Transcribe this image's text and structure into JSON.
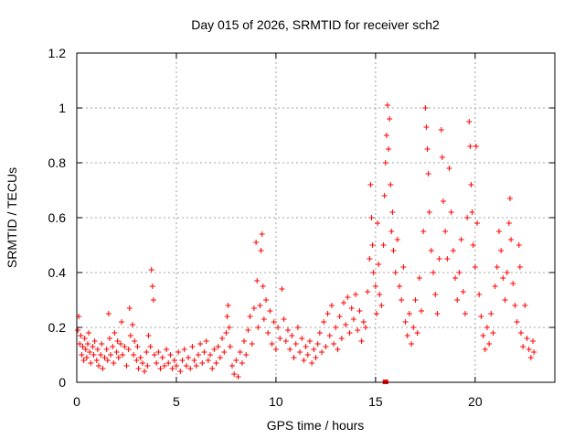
{
  "chart_data": {
    "type": "scatter",
    "title": "Day 015 of 2026, SRMTID for receiver sch2",
    "xlabel": "GPS time / hours",
    "ylabel": "SRMTID / TECUs",
    "xlim": [
      0,
      24
    ],
    "ylim": [
      0,
      1.2
    ],
    "xticks": [
      0,
      5,
      10,
      15,
      20
    ],
    "xtick_labels": [
      "0",
      "5",
      "10",
      "15",
      "20"
    ],
    "yticks": [
      0,
      0.2,
      0.4,
      0.6,
      0.8,
      1.0,
      1.2
    ],
    "ytick_labels": [
      "0",
      "0.2",
      "0.4",
      "0.6",
      "0.8",
      "1",
      "1.2"
    ],
    "grid": true,
    "marker": "plus",
    "color": "#ff0000",
    "series": [
      {
        "name": "SRMTID",
        "points": [
          [
            0.05,
            0.19
          ],
          [
            0.1,
            0.24
          ],
          [
            0.15,
            0.14
          ],
          [
            0.2,
            0.17
          ],
          [
            0.25,
            0.1
          ],
          [
            0.3,
            0.13
          ],
          [
            0.35,
            0.08
          ],
          [
            0.4,
            0.16
          ],
          [
            0.45,
            0.12
          ],
          [
            0.5,
            0.09
          ],
          [
            0.55,
            0.14
          ],
          [
            0.6,
            0.18
          ],
          [
            0.65,
            0.11
          ],
          [
            0.7,
            0.07
          ],
          [
            0.8,
            0.13
          ],
          [
            0.85,
            0.1
          ],
          [
            0.9,
            0.15
          ],
          [
            1.0,
            0.08
          ],
          [
            1.05,
            0.12
          ],
          [
            1.1,
            0.06
          ],
          [
            1.2,
            0.1
          ],
          [
            1.25,
            0.14
          ],
          [
            1.3,
            0.05
          ],
          [
            1.4,
            0.09
          ],
          [
            1.5,
            0.12
          ],
          [
            1.55,
            0.08
          ],
          [
            1.6,
            0.25
          ],
          [
            1.65,
            0.16
          ],
          [
            1.7,
            0.1
          ],
          [
            1.8,
            0.13
          ],
          [
            1.85,
            0.07
          ],
          [
            1.9,
            0.18
          ],
          [
            2.0,
            0.11
          ],
          [
            2.05,
            0.15
          ],
          [
            2.1,
            0.09
          ],
          [
            2.2,
            0.14
          ],
          [
            2.25,
            0.22
          ],
          [
            2.3,
            0.1
          ],
          [
            2.4,
            0.13
          ],
          [
            2.5,
            0.06
          ],
          [
            2.6,
            0.12
          ],
          [
            2.65,
            0.27
          ],
          [
            2.7,
            0.17
          ],
          [
            2.8,
            0.21
          ],
          [
            2.85,
            0.1
          ],
          [
            2.9,
            0.15
          ],
          [
            3.0,
            0.08
          ],
          [
            3.05,
            0.13
          ],
          [
            3.1,
            0.05
          ],
          [
            3.2,
            0.09
          ],
          [
            3.3,
            0.07
          ],
          [
            3.4,
            0.04
          ],
          [
            3.5,
            0.11
          ],
          [
            3.55,
            0.06
          ],
          [
            3.6,
            0.17
          ],
          [
            3.7,
            0.13
          ],
          [
            3.75,
            0.41
          ],
          [
            3.8,
            0.35
          ],
          [
            3.85,
            0.3
          ],
          [
            3.9,
            0.1
          ],
          [
            4.0,
            0.07
          ],
          [
            4.1,
            0.11
          ],
          [
            4.2,
            0.05
          ],
          [
            4.3,
            0.09
          ],
          [
            4.4,
            0.06
          ],
          [
            4.5,
            0.12
          ],
          [
            4.6,
            0.07
          ],
          [
            4.7,
            0.1
          ],
          [
            4.8,
            0.05
          ],
          [
            4.9,
            0.08
          ],
          [
            5.0,
            0.06
          ],
          [
            5.1,
            0.11
          ],
          [
            5.2,
            0.04
          ],
          [
            5.3,
            0.08
          ],
          [
            5.4,
            0.12
          ],
          [
            5.5,
            0.06
          ],
          [
            5.6,
            0.09
          ],
          [
            5.7,
            0.05
          ],
          [
            5.8,
            0.13
          ],
          [
            5.9,
            0.08
          ],
          [
            6.0,
            0.06
          ],
          [
            6.1,
            0.1
          ],
          [
            6.2,
            0.14
          ],
          [
            6.3,
            0.07
          ],
          [
            6.4,
            0.11
          ],
          [
            6.5,
            0.15
          ],
          [
            6.6,
            0.08
          ],
          [
            6.7,
            0.1
          ],
          [
            6.8,
            0.05
          ],
          [
            6.9,
            0.12
          ],
          [
            7.0,
            0.07
          ],
          [
            7.1,
            0.13
          ],
          [
            7.2,
            0.09
          ],
          [
            7.3,
            0.16
          ],
          [
            7.4,
            0.11
          ],
          [
            7.5,
            0.18
          ],
          [
            7.55,
            0.24
          ],
          [
            7.6,
            0.28
          ],
          [
            7.65,
            0.2
          ],
          [
            7.7,
            0.13
          ],
          [
            7.8,
            0.06
          ],
          [
            7.9,
            0.03
          ],
          [
            8.0,
            0.08
          ],
          [
            8.1,
            0.02
          ],
          [
            8.2,
            0.11
          ],
          [
            8.3,
            0.07
          ],
          [
            8.4,
            0.15
          ],
          [
            8.5,
            0.1
          ],
          [
            8.6,
            0.19
          ],
          [
            8.7,
            0.24
          ],
          [
            8.8,
            0.14
          ],
          [
            8.9,
            0.27
          ],
          [
            9.0,
            0.51
          ],
          [
            9.05,
            0.37
          ],
          [
            9.1,
            0.2
          ],
          [
            9.2,
            0.28
          ],
          [
            9.25,
            0.48
          ],
          [
            9.3,
            0.54
          ],
          [
            9.35,
            0.35
          ],
          [
            9.4,
            0.23
          ],
          [
            9.5,
            0.3
          ],
          [
            9.6,
            0.18
          ],
          [
            9.7,
            0.26
          ],
          [
            9.8,
            0.14
          ],
          [
            9.9,
            0.22
          ],
          [
            10.0,
            0.12
          ],
          [
            10.1,
            0.2
          ],
          [
            10.2,
            0.16
          ],
          [
            10.3,
            0.34
          ],
          [
            10.4,
            0.23
          ],
          [
            10.5,
            0.15
          ],
          [
            10.6,
            0.19
          ],
          [
            10.7,
            0.12
          ],
          [
            10.8,
            0.17
          ],
          [
            10.9,
            0.09
          ],
          [
            11.0,
            0.14
          ],
          [
            11.1,
            0.2
          ],
          [
            11.2,
            0.11
          ],
          [
            11.3,
            0.16
          ],
          [
            11.4,
            0.08
          ],
          [
            11.5,
            0.13
          ],
          [
            11.6,
            0.1
          ],
          [
            11.7,
            0.15
          ],
          [
            11.8,
            0.07
          ],
          [
            11.9,
            0.12
          ],
          [
            12.0,
            0.09
          ],
          [
            12.1,
            0.14
          ],
          [
            12.2,
            0.18
          ],
          [
            12.3,
            0.11
          ],
          [
            12.4,
            0.22
          ],
          [
            12.5,
            0.13
          ],
          [
            12.6,
            0.25
          ],
          [
            12.7,
            0.17
          ],
          [
            12.8,
            0.28
          ],
          [
            12.9,
            0.14
          ],
          [
            13.0,
            0.2
          ],
          [
            13.1,
            0.12
          ],
          [
            13.2,
            0.24
          ],
          [
            13.3,
            0.16
          ],
          [
            13.4,
            0.29
          ],
          [
            13.5,
            0.21
          ],
          [
            13.6,
            0.31
          ],
          [
            13.7,
            0.18
          ],
          [
            13.8,
            0.27
          ],
          [
            13.9,
            0.23
          ],
          [
            14.0,
            0.32
          ],
          [
            14.1,
            0.19
          ],
          [
            14.2,
            0.26
          ],
          [
            14.3,
            0.15
          ],
          [
            14.4,
            0.22
          ],
          [
            14.5,
            0.2
          ],
          [
            14.6,
            0.33
          ],
          [
            14.7,
            0.45
          ],
          [
            14.75,
            0.72
          ],
          [
            14.8,
            0.6
          ],
          [
            14.85,
            0.5
          ],
          [
            14.9,
            0.4
          ],
          [
            15.0,
            0.35
          ],
          [
            15.05,
            0.25
          ],
          [
            15.1,
            0.58
          ],
          [
            15.15,
            0.43
          ],
          [
            15.2,
            0.32
          ],
          [
            15.3,
            0.28
          ],
          [
            15.4,
            0.5
          ],
          [
            15.45,
            0.68
          ],
          [
            15.5,
            0.8
          ],
          [
            15.55,
            0.9
          ],
          [
            15.6,
            1.01
          ],
          [
            15.65,
            0.85
          ],
          [
            15.7,
            0.96
          ],
          [
            15.75,
            0.72
          ],
          [
            15.8,
            0.55
          ],
          [
            15.85,
            0.62
          ],
          [
            15.9,
            0.48
          ],
          [
            16.0,
            0.4
          ],
          [
            16.1,
            0.52
          ],
          [
            16.2,
            0.35
          ],
          [
            16.3,
            0.3
          ],
          [
            16.4,
            0.42
          ],
          [
            16.5,
            0.22
          ],
          [
            16.6,
            0.17
          ],
          [
            16.7,
            0.25
          ],
          [
            16.8,
            0.14
          ],
          [
            16.9,
            0.2
          ],
          [
            17.0,
            0.3
          ],
          [
            17.1,
            0.18
          ],
          [
            17.2,
            0.38
          ],
          [
            17.3,
            0.26
          ],
          [
            17.4,
            0.55
          ],
          [
            17.5,
            1.0
          ],
          [
            17.55,
            0.93
          ],
          [
            17.6,
            0.85
          ],
          [
            17.65,
            0.76
          ],
          [
            17.7,
            0.62
          ],
          [
            17.8,
            0.48
          ],
          [
            17.9,
            0.4
          ],
          [
            18.0,
            0.32
          ],
          [
            18.1,
            0.25
          ],
          [
            18.2,
            0.45
          ],
          [
            18.3,
            0.92
          ],
          [
            18.35,
            0.82
          ],
          [
            18.4,
            0.66
          ],
          [
            18.5,
            0.55
          ],
          [
            18.6,
            0.45
          ],
          [
            18.7,
            0.78
          ],
          [
            18.8,
            0.62
          ],
          [
            18.9,
            0.48
          ],
          [
            19.0,
            0.38
          ],
          [
            19.1,
            0.3
          ],
          [
            19.2,
            0.4
          ],
          [
            19.3,
            0.52
          ],
          [
            19.4,
            0.33
          ],
          [
            19.5,
            0.25
          ],
          [
            19.6,
            0.6
          ],
          [
            19.7,
            0.95
          ],
          [
            19.75,
            0.86
          ],
          [
            19.8,
            0.72
          ],
          [
            19.85,
            0.62
          ],
          [
            19.9,
            0.5
          ],
          [
            20.0,
            0.42
          ],
          [
            20.05,
            0.86
          ],
          [
            20.1,
            0.58
          ],
          [
            20.2,
            0.32
          ],
          [
            20.3,
            0.24
          ],
          [
            20.4,
            0.17
          ],
          [
            20.5,
            0.12
          ],
          [
            20.6,
            0.2
          ],
          [
            20.7,
            0.14
          ],
          [
            20.8,
            0.25
          ],
          [
            20.9,
            0.18
          ],
          [
            21.0,
            0.35
          ],
          [
            21.1,
            0.42
          ],
          [
            21.2,
            0.55
          ],
          [
            21.3,
            0.48
          ],
          [
            21.4,
            0.38
          ],
          [
            21.5,
            0.3
          ],
          [
            21.6,
            0.4
          ],
          [
            21.7,
            0.58
          ],
          [
            21.75,
            0.67
          ],
          [
            21.8,
            0.52
          ],
          [
            21.9,
            0.36
          ],
          [
            22.0,
            0.28
          ],
          [
            22.1,
            0.22
          ],
          [
            22.2,
            0.5
          ],
          [
            22.25,
            0.42
          ],
          [
            22.3,
            0.18
          ],
          [
            22.4,
            0.13
          ],
          [
            22.5,
            0.28
          ],
          [
            22.6,
            0.16
          ],
          [
            22.7,
            0.12
          ],
          [
            22.8,
            0.09
          ],
          [
            22.9,
            0.15
          ],
          [
            22.95,
            0.11
          ]
        ]
      }
    ],
    "extra_markers": [
      {
        "x": 15.5,
        "y": 0.0,
        "marker": "square"
      }
    ]
  }
}
